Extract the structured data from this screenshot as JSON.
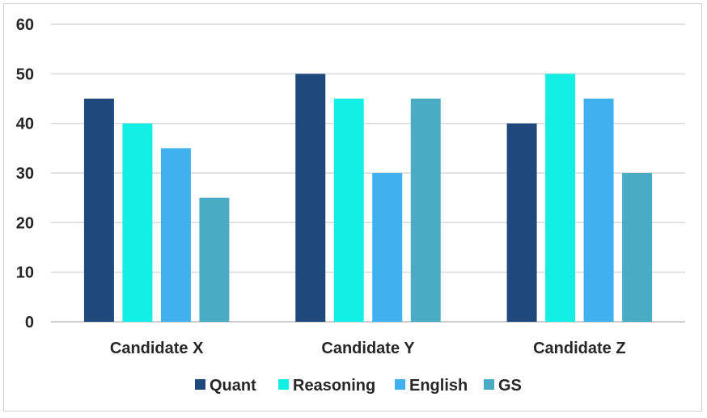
{
  "chart_data": {
    "type": "bar",
    "title": "",
    "xlabel": "",
    "ylabel": "",
    "categories": [
      "Candidate X",
      "Candidate Y",
      "Candidate Z"
    ],
    "series": [
      {
        "name": "Quant",
        "color": "#1f497d",
        "values": [
          45,
          50,
          40
        ]
      },
      {
        "name": "Reasoning",
        "color": "#14efe6",
        "values": [
          40,
          45,
          50
        ]
      },
      {
        "name": "English",
        "color": "#3fb1ef",
        "values": [
          35,
          30,
          45
        ]
      },
      {
        "name": "GS",
        "color": "#4aabc5",
        "values": [
          25,
          45,
          30
        ]
      }
    ],
    "ylim": [
      0,
      60
    ],
    "yticks": [
      "0",
      "10",
      "20",
      "30",
      "40",
      "50",
      "60"
    ],
    "grid": true,
    "legend_position": "bottom"
  }
}
